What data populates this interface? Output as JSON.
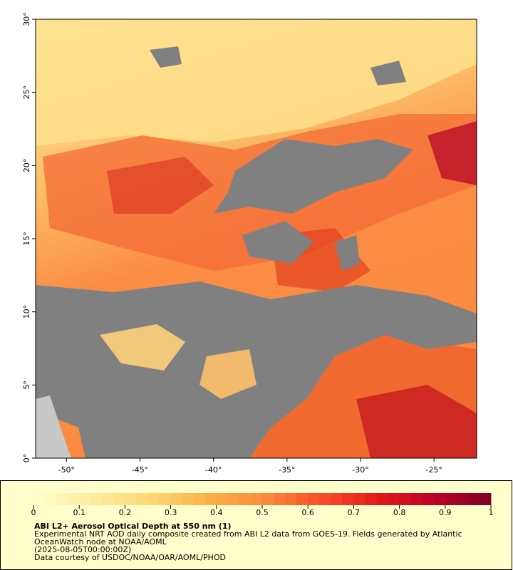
{
  "map": {
    "xlim": [
      -52.1,
      -22.1
    ],
    "ylim": [
      0,
      30
    ],
    "xticks": [
      {
        "value": -50,
        "label": "-50°"
      },
      {
        "value": -45,
        "label": "-45°"
      },
      {
        "value": -40,
        "label": "-40°"
      },
      {
        "value": -35,
        "label": "-35°"
      },
      {
        "value": -30,
        "label": "-30°"
      },
      {
        "value": -25,
        "label": "-25°"
      }
    ],
    "yticks": [
      {
        "value": 0,
        "label": "0°"
      },
      {
        "value": 5,
        "label": "5°"
      },
      {
        "value": 10,
        "label": "10°"
      },
      {
        "value": 15,
        "label": "15°"
      },
      {
        "value": 20,
        "label": "20°"
      },
      {
        "value": 25,
        "label": "25°"
      },
      {
        "value": 30,
        "label": "30°"
      }
    ]
  },
  "colorbar": {
    "lim": [
      0,
      1
    ],
    "ticks": [
      0,
      0.1,
      0.2,
      0.3,
      0.4,
      0.5,
      0.6,
      0.7,
      0.8,
      0.9,
      1
    ],
    "colors": [
      "#ffffcc",
      "#ffeda0",
      "#fed976",
      "#feb24c",
      "#fd8d3c",
      "#fc4e2a",
      "#e31a1c",
      "#bd0026",
      "#800026"
    ]
  },
  "caption": {
    "title": "ABI L2+ Aerosol Optical Depth at 550 nm (1)",
    "lines": [
      "Experimental NRT AOD daily composite created from ABI L2 data from GOES-19. Fields generated by Atlantic",
      "OceanWatch node at NOAA/AOML",
      "(2025-08-05T00:00:00Z)",
      "Data courtesy of USDOC/NOAA/OAR/AOML/PHOD"
    ]
  }
}
